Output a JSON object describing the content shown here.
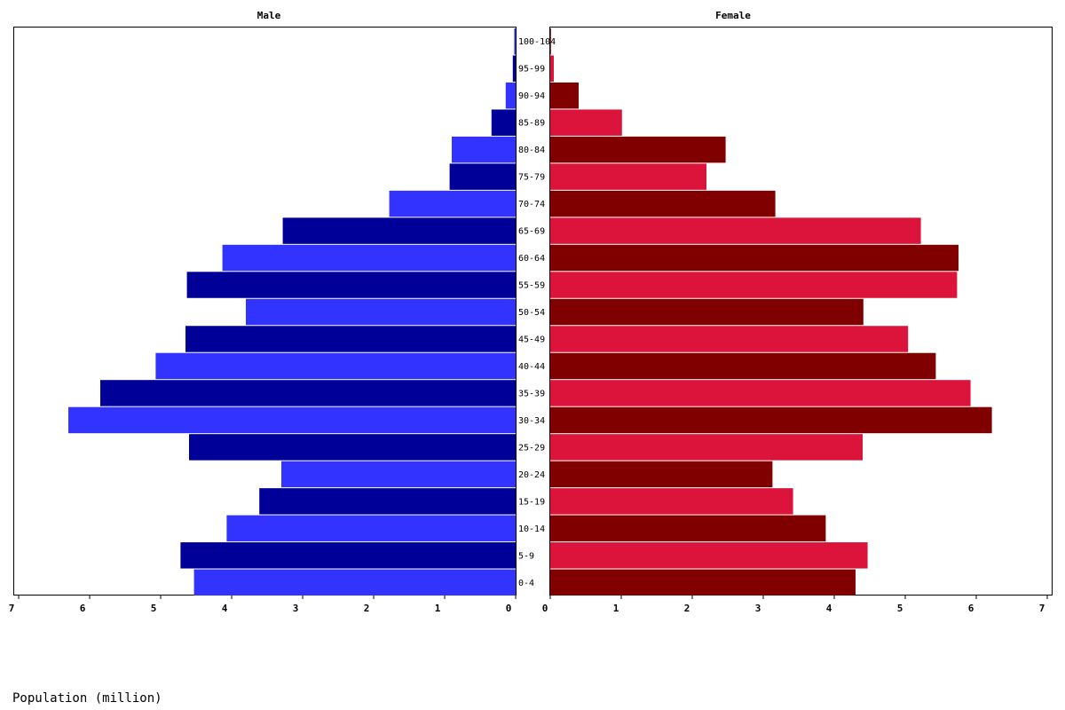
{
  "chart_data": {
    "type": "bar",
    "orientation": "horizontal",
    "layout": "population-pyramid",
    "xlabel": "Population (million)",
    "xlim": [
      0,
      7
    ],
    "xticks": [
      0,
      1,
      2,
      3,
      4,
      5,
      6,
      7
    ],
    "grid": false,
    "categories": [
      "0-4",
      "5-9",
      "10-14",
      "15-19",
      "20-24",
      "25-29",
      "30-34",
      "35-39",
      "40-44",
      "45-49",
      "50-54",
      "55-59",
      "60-64",
      "65-69",
      "70-74",
      "75-79",
      "80-84",
      "85-89",
      "90-94",
      "95-99",
      "100-104"
    ],
    "series": [
      {
        "name": "Male",
        "colors": [
          "#3333ff",
          "#000099"
        ],
        "values": [
          4.53,
          4.72,
          4.07,
          3.61,
          3.3,
          4.6,
          6.3,
          5.85,
          5.07,
          4.65,
          3.8,
          4.63,
          4.13,
          3.28,
          1.78,
          0.93,
          0.9,
          0.34,
          0.14,
          0.04,
          0.02
        ]
      },
      {
        "name": "Female",
        "colors": [
          "#800000",
          "#dc143c"
        ],
        "values": [
          4.3,
          4.47,
          3.88,
          3.42,
          3.13,
          4.4,
          6.22,
          5.92,
          5.43,
          5.04,
          4.41,
          5.73,
          5.75,
          5.22,
          3.17,
          2.2,
          2.47,
          1.01,
          0.4,
          0.05,
          0.01
        ]
      }
    ]
  }
}
